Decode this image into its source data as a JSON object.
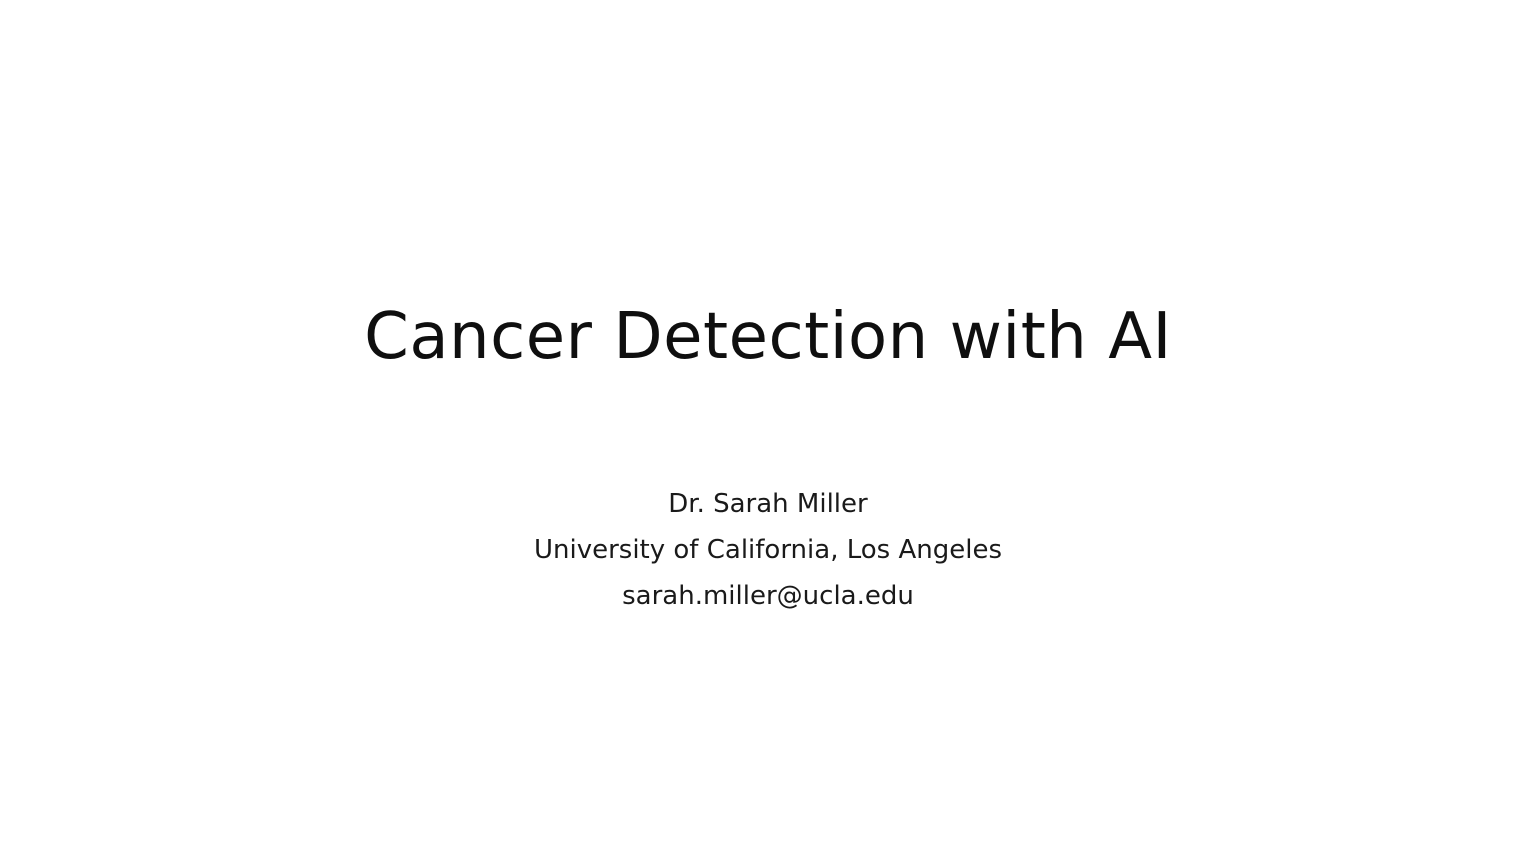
{
  "slide": {
    "title": "Cancer Detection with AI",
    "subtitle": {
      "author": "Dr. Sarah Miller",
      "affiliation": "University of California, Los Angeles",
      "email": "sarah.miller@ucla.edu"
    }
  },
  "colors": {
    "background": "#ffffff",
    "text": "#111111"
  }
}
